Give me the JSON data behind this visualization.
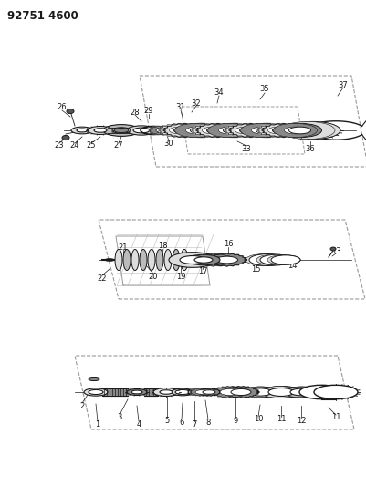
{
  "title": "92751 4600",
  "bg_color": "#ffffff",
  "line_color": "#1a1a1a",
  "gray_dark": "#555555",
  "gray_mid": "#888888",
  "gray_light": "#bbbbbb",
  "gray_lighter": "#dddddd"
}
